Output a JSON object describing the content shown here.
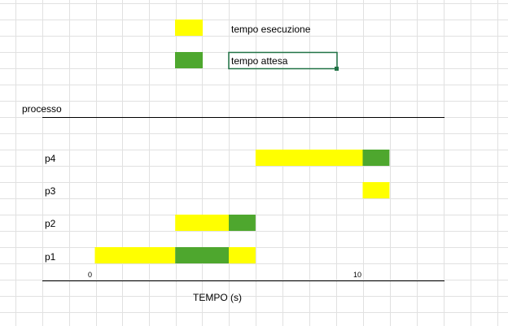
{
  "legend": {
    "items": [
      {
        "color": "#FFFF00",
        "label": "tempo esecuzione"
      },
      {
        "color": "#4EA72E",
        "label": "tempo attesa"
      }
    ]
  },
  "sheet": {
    "selected_cell_color": "#217346",
    "gridline_color": "#E1E1E1"
  },
  "chart_data": {
    "type": "bar",
    "subtype": "gantt",
    "title": "",
    "ylabel": "processo",
    "xlabel": "TEMPO (s)",
    "tick_labels": [
      {
        "value": 0,
        "label": "0"
      },
      {
        "value": 10,
        "label": "10"
      }
    ],
    "xlim": [
      0,
      13
    ],
    "grid": true,
    "categories": [
      "p1",
      "p2",
      "p3",
      "p4"
    ],
    "series": [
      {
        "color": "#FFFF00",
        "legend_index": 0
      },
      {
        "color": "#4EA72E",
        "legend_index": 1
      }
    ],
    "tasks": [
      {
        "process": "p1",
        "segments": [
          {
            "start": 0,
            "end": 3,
            "series": 0
          },
          {
            "start": 3,
            "end": 5,
            "series": 1
          },
          {
            "start": 5,
            "end": 6,
            "series": 0
          }
        ]
      },
      {
        "process": "p2",
        "segments": [
          {
            "start": 3,
            "end": 5,
            "series": 0
          },
          {
            "start": 5,
            "end": 6,
            "series": 1
          }
        ]
      },
      {
        "process": "p3",
        "segments": [
          {
            "start": 10,
            "end": 11,
            "series": 0
          }
        ]
      },
      {
        "process": "p4",
        "segments": [
          {
            "start": 6,
            "end": 10,
            "series": 0
          },
          {
            "start": 10,
            "end": 11,
            "series": 1
          }
        ]
      }
    ]
  }
}
